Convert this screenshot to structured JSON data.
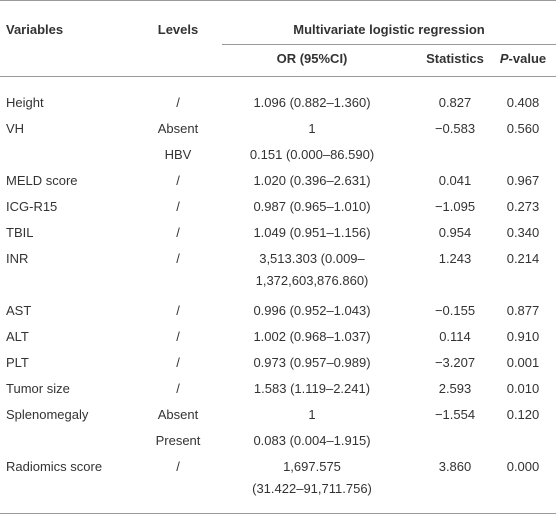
{
  "table": {
    "header": {
      "variables": "Variables",
      "levels": "Levels",
      "group": "Multivariate logistic regression",
      "or": "OR (95%CI)",
      "statistics": "Statistics",
      "p_value": [
        "P",
        "-value"
      ]
    },
    "rows": [
      [
        "Height",
        "/",
        "1.096 (0.882–1.360)",
        "0.827",
        "0.408"
      ],
      [
        "VH",
        "Absent",
        "1",
        "−0.583",
        "0.560"
      ],
      [
        null,
        "HBV",
        "0.151 (0.000–86.590)",
        null,
        null
      ],
      [
        "MELD score",
        "/",
        "1.020 (0.396–2.631)",
        "0.041",
        "0.967"
      ],
      [
        "ICG-R15",
        "/",
        "0.987 (0.965–1.010)",
        "−1.095",
        "0.273"
      ],
      [
        "TBIL",
        "/",
        "1.049 (0.951–1.156)",
        "0.954",
        "0.340"
      ],
      [
        "INR",
        "/",
        [
          "3,513.303 (0.009–",
          "1,372,603,876.860)"
        ],
        "1.243",
        "0.214"
      ],
      [
        "AST",
        "/",
        "0.996 (0.952–1.043)",
        "−0.155",
        "0.877"
      ],
      [
        "ALT",
        "/",
        "1.002 (0.968–1.037)",
        "0.114",
        "0.910"
      ],
      [
        "PLT",
        "/",
        "0.973 (0.957–0.989)",
        "−3.207",
        "0.001"
      ],
      [
        "Tumor size",
        "/",
        "1.583 (1.119–2.241)",
        "2.593",
        "0.010"
      ],
      [
        "Splenomegaly",
        "Absent",
        "1",
        "−1.554",
        "0.120"
      ],
      [
        null,
        "Present",
        "0.083 (0.004–1.915)",
        null,
        null
      ],
      [
        "Radiomics score",
        "/",
        [
          "1,697.575",
          "(31.422–91,711.756)"
        ],
        "3.860",
        "0.000"
      ]
    ]
  }
}
